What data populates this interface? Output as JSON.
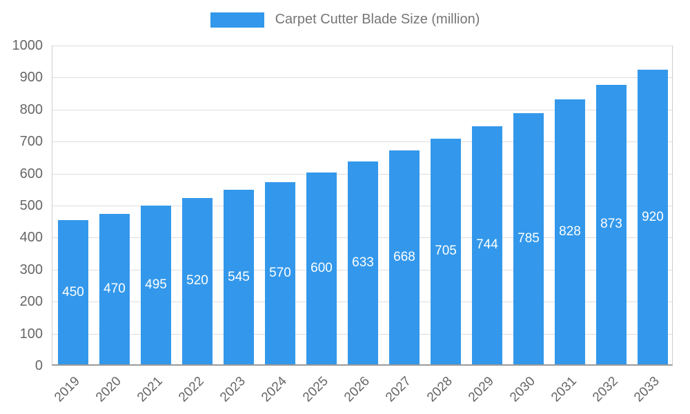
{
  "legend": {
    "swatch_color": "#3398EB"
  },
  "chart_data": {
    "type": "bar",
    "title": "Carpet Cutter Blade Size (million)",
    "categories": [
      "2019",
      "2020",
      "2021",
      "2022",
      "2023",
      "2024",
      "2025",
      "2026",
      "2027",
      "2028",
      "2029",
      "2030",
      "2031",
      "2032",
      "2033"
    ],
    "values": [
      450,
      470,
      495,
      520,
      545,
      570,
      600,
      633,
      668,
      705,
      744,
      785,
      828,
      873,
      920
    ],
    "xlabel": "",
    "ylabel": "",
    "ylim": [
      0,
      1000
    ],
    "yticks": [
      0,
      100,
      200,
      300,
      400,
      500,
      600,
      700,
      800,
      900,
      1000
    ],
    "grid": true,
    "legend_position": "top-center",
    "bar_color": "#3398EB",
    "value_label_color": "#FFFFFF",
    "axis_label_color": "#666666",
    "title_color": "#757575",
    "gridline_color": "#DDDDDD"
  }
}
